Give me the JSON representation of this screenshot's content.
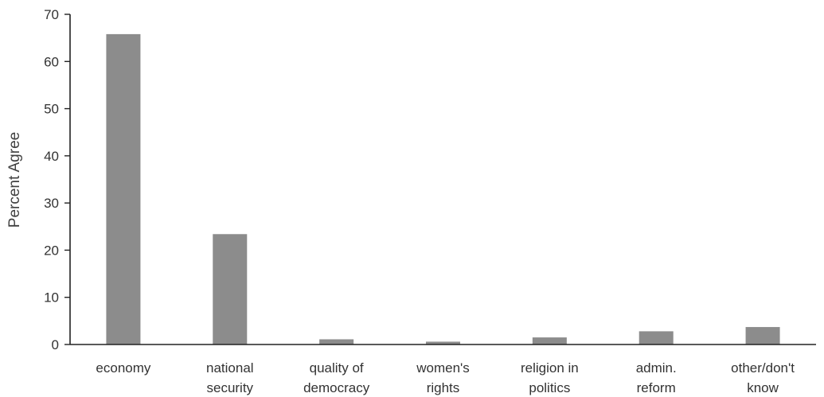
{
  "chart_data": {
    "type": "bar",
    "title": "",
    "xlabel": "",
    "ylabel": "Percent Agree",
    "ylim": [
      0,
      70
    ],
    "yticks": [
      0,
      10,
      20,
      30,
      40,
      50,
      60,
      70
    ],
    "grid": false,
    "legend": "none",
    "bar_color": "#8c8c8c",
    "categories": [
      [
        "economy"
      ],
      [
        "national",
        "security"
      ],
      [
        "quality of",
        "democracy"
      ],
      [
        "women's",
        "rights"
      ],
      [
        "religion in",
        "politics"
      ],
      [
        "admin.",
        "reform"
      ],
      [
        "other/don't",
        "know"
      ]
    ],
    "values": [
      65.8,
      23.4,
      1.1,
      0.6,
      1.5,
      2.8,
      3.7
    ]
  }
}
